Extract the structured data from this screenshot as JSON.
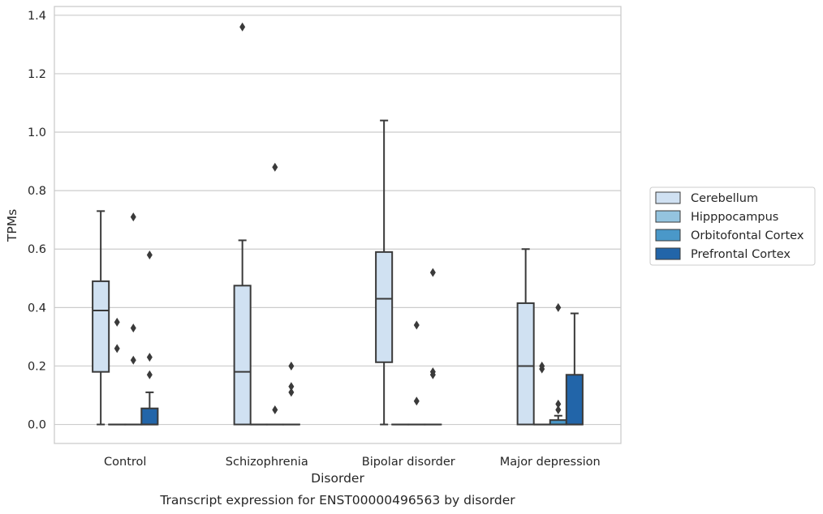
{
  "chart_data": {
    "type": "box",
    "caption": "Transcript expression for ENST00000496563 by disorder",
    "xlabel": "Disorder",
    "ylabel": "TPMs",
    "ylim": [
      -0.065,
      1.43
    ],
    "yticks": [
      "0.0",
      "0.2",
      "0.4",
      "0.6",
      "0.8",
      "1.0",
      "1.2",
      "1.4"
    ],
    "grid": "horizontal",
    "legend_position": "right",
    "categories": [
      "Control",
      "Schizophrenia",
      "Bipolar disorder",
      "Major depression"
    ],
    "series": [
      {
        "name": "Cerebellum",
        "color": "#d0e1f2",
        "boxes": [
          {
            "whislo": 0.0,
            "q1": 0.18,
            "median": 0.39,
            "q3": 0.49,
            "whishi": 0.73,
            "fliers": []
          },
          {
            "whislo": 0.0,
            "q1": 0.0,
            "median": 0.18,
            "q3": 0.475,
            "whishi": 0.63,
            "fliers": [
              1.36
            ]
          },
          {
            "whislo": 0.0,
            "q1": 0.213,
            "median": 0.43,
            "q3": 0.59,
            "whishi": 1.04,
            "fliers": []
          },
          {
            "whislo": 0.0,
            "q1": 0.0,
            "median": 0.2,
            "q3": 0.415,
            "whishi": 0.6,
            "fliers": []
          }
        ]
      },
      {
        "name": "Hipppocampus",
        "color": "#94c4df",
        "boxes": [
          {
            "whislo": 0.0,
            "q1": 0.0,
            "median": 0.0,
            "q3": 0.0,
            "whishi": 0.0,
            "fliers": [
              0.35,
              0.26
            ]
          },
          {
            "whislo": 0.0,
            "q1": 0.0,
            "median": 0.0,
            "q3": 0.0,
            "whishi": 0.0,
            "fliers": []
          },
          {
            "whislo": 0.0,
            "q1": 0.0,
            "median": 0.0,
            "q3": 0.0,
            "whishi": 0.0,
            "fliers": []
          },
          {
            "whislo": 0.0,
            "q1": 0.0,
            "median": 0.0,
            "q3": 0.0,
            "whishi": 0.0,
            "fliers": [
              0.2,
              0.19
            ]
          }
        ]
      },
      {
        "name": "Orbitofontal Cortex",
        "color": "#4a98c9",
        "boxes": [
          {
            "whislo": 0.0,
            "q1": 0.0,
            "median": 0.0,
            "q3": 0.0,
            "whishi": 0.0,
            "fliers": [
              0.71,
              0.33,
              0.22
            ]
          },
          {
            "whislo": 0.0,
            "q1": 0.0,
            "median": 0.0,
            "q3": 0.0,
            "whishi": 0.0,
            "fliers": [
              0.88,
              0.05
            ]
          },
          {
            "whislo": 0.0,
            "q1": 0.0,
            "median": 0.0,
            "q3": 0.0,
            "whishi": 0.0,
            "fliers": [
              0.34,
              0.08
            ]
          },
          {
            "whislo": 0.0,
            "q1": 0.0,
            "median": 0.0,
            "q3": 0.015,
            "whishi": 0.03,
            "fliers": [
              0.4,
              0.07,
              0.05
            ]
          }
        ]
      },
      {
        "name": "Prefrontal Cortex",
        "color": "#2265a9",
        "boxes": [
          {
            "whislo": 0.0,
            "q1": 0.0,
            "median": 0.0,
            "q3": 0.055,
            "whishi": 0.11,
            "fliers": [
              0.58,
              0.23,
              0.17
            ]
          },
          {
            "whislo": 0.0,
            "q1": 0.0,
            "median": 0.0,
            "q3": 0.0,
            "whishi": 0.0,
            "fliers": [
              0.2,
              0.13,
              0.11
            ]
          },
          {
            "whislo": 0.0,
            "q1": 0.0,
            "median": 0.0,
            "q3": 0.0,
            "whishi": 0.0,
            "fliers": [
              0.52,
              0.18,
              0.17
            ]
          },
          {
            "whislo": 0.0,
            "q1": 0.0,
            "median": 0.0,
            "q3": 0.17,
            "whishi": 0.38,
            "fliers": []
          }
        ]
      }
    ],
    "colors": {
      "line": "#3a3a3a",
      "grid": "#cccccc",
      "frame": "#cccccc",
      "text": "#262626"
    }
  }
}
